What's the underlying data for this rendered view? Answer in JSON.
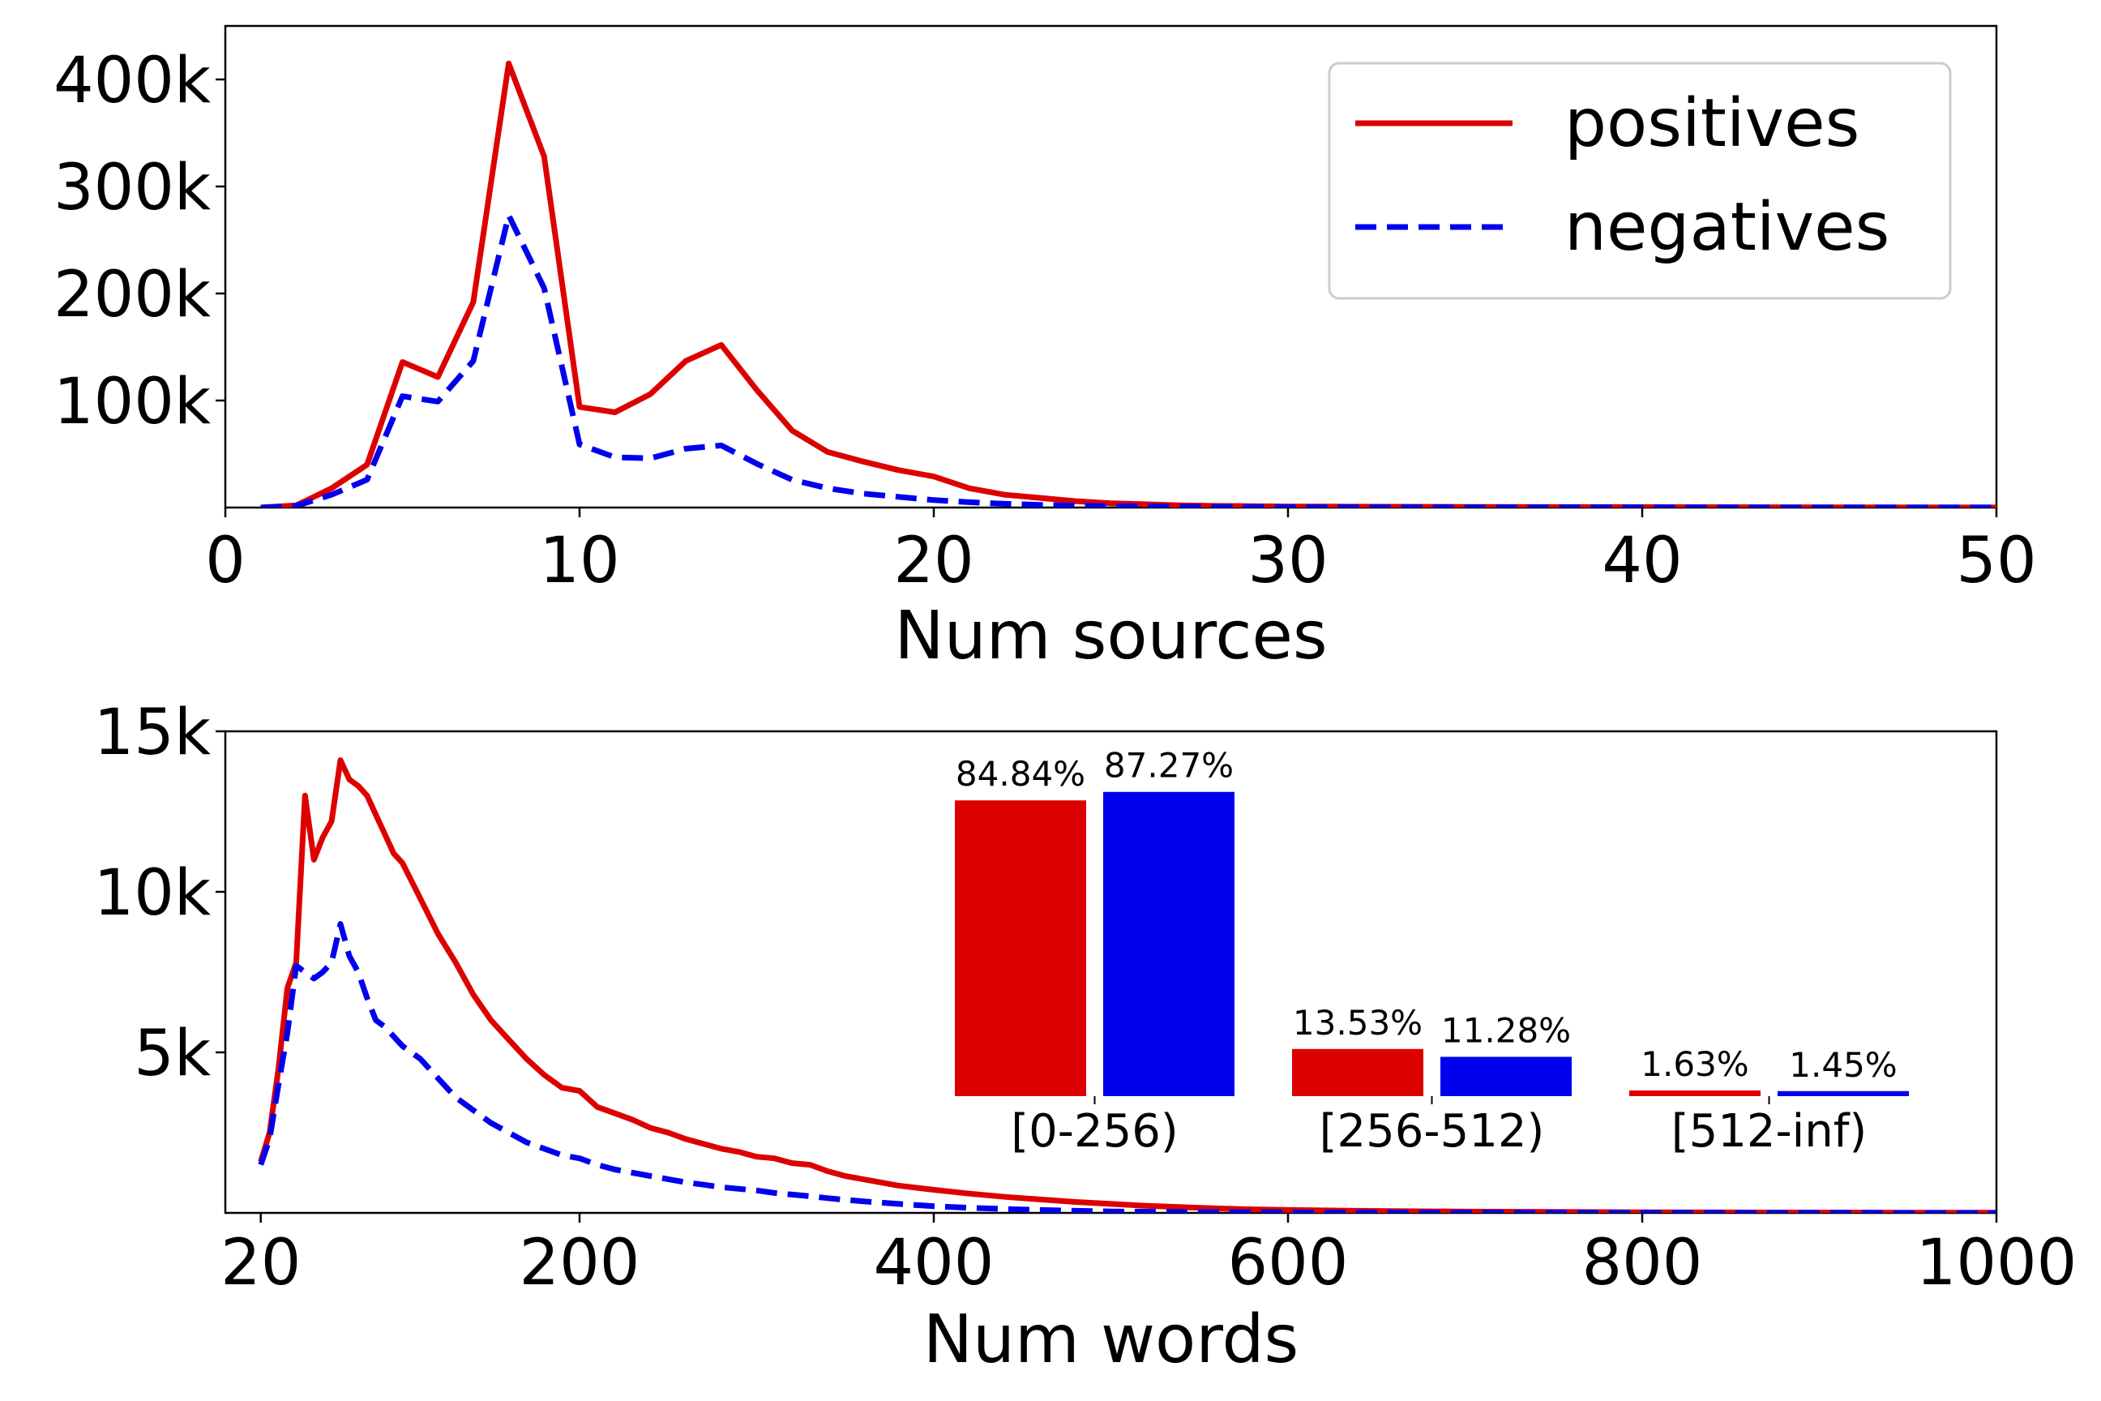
{
  "chart_data": [
    {
      "type": "line",
      "xlabel": "Num sources",
      "ylabel": "",
      "xlim": [
        0,
        50
      ],
      "ylim": [
        0,
        450000
      ],
      "xticks": [
        0,
        10,
        20,
        30,
        40,
        50
      ],
      "xtick_labels": [
        "0",
        "10",
        "20",
        "30",
        "40",
        "50"
      ],
      "yticks": [
        100000,
        200000,
        300000,
        400000
      ],
      "ytick_labels": [
        "100k",
        "200k",
        "300k",
        "400k"
      ],
      "grid": false,
      "legend_position": "top-right",
      "legend": [
        {
          "label": "positives",
          "color": "#dd0000",
          "style": "solid"
        },
        {
          "label": "negatives",
          "color": "#0000ee",
          "style": "dashed"
        }
      ],
      "series": [
        {
          "name": "positives",
          "color": "#dd0000",
          "style": "solid",
          "x": [
            1,
            2,
            3,
            4,
            5,
            6,
            7,
            8,
            9,
            10,
            11,
            12,
            13,
            14,
            15,
            16,
            17,
            18,
            19,
            20,
            21,
            22,
            23,
            24,
            25,
            26,
            27,
            28,
            30,
            35,
            40,
            45,
            50
          ],
          "y": [
            0,
            2000,
            18000,
            40000,
            136000,
            122000,
            192000,
            415000,
            328000,
            94000,
            89000,
            106000,
            137000,
            152000,
            110000,
            72000,
            52000,
            43000,
            35000,
            29000,
            18000,
            12000,
            9000,
            6000,
            4000,
            3000,
            2000,
            1500,
            1000,
            600,
            400,
            200,
            100
          ]
        },
        {
          "name": "negatives",
          "color": "#0000ee",
          "style": "dashed",
          "x": [
            1,
            2,
            3,
            4,
            5,
            6,
            7,
            8,
            9,
            10,
            11,
            12,
            13,
            14,
            15,
            16,
            17,
            18,
            19,
            20,
            21,
            22,
            23,
            24,
            25,
            26,
            28,
            30,
            35,
            40,
            45,
            50
          ],
          "y": [
            0,
            1500,
            12000,
            26000,
            104000,
            99000,
            137000,
            273000,
            205000,
            59000,
            47000,
            46000,
            55000,
            58000,
            41000,
            26000,
            18000,
            13000,
            10000,
            7000,
            5000,
            3500,
            2500,
            1800,
            1200,
            900,
            600,
            400,
            250,
            150,
            80,
            50
          ]
        }
      ]
    },
    {
      "type": "line",
      "xlabel": "Num words",
      "ylabel": "",
      "xlim": [
        0,
        1000
      ],
      "ylim": [
        0,
        15000
      ],
      "xticks": [
        20,
        200,
        400,
        600,
        800,
        1000
      ],
      "xtick_labels": [
        "20",
        "200",
        "400",
        "600",
        "800",
        "1000"
      ],
      "yticks": [
        5000,
        10000,
        15000
      ],
      "ytick_labels": [
        "5k",
        "10k",
        "15k"
      ],
      "grid": false,
      "series": [
        {
          "name": "positives",
          "color": "#dd0000",
          "style": "solid",
          "x": [
            20,
            25,
            30,
            35,
            40,
            45,
            50,
            55,
            60,
            65,
            70,
            75,
            80,
            85,
            90,
            95,
            100,
            110,
            120,
            130,
            140,
            150,
            160,
            170,
            180,
            190,
            200,
            210,
            220,
            230,
            240,
            250,
            260,
            270,
            280,
            290,
            300,
            310,
            320,
            330,
            340,
            350,
            360,
            380,
            400,
            420,
            440,
            460,
            480,
            500,
            520,
            540,
            560,
            580,
            600,
            650,
            700,
            750,
            800,
            850,
            900,
            950,
            1000
          ],
          "y": [
            1600,
            2500,
            4500,
            7000,
            7800,
            13000,
            11000,
            11700,
            12200,
            14100,
            13500,
            13300,
            13000,
            12400,
            11800,
            11200,
            10900,
            9800,
            8700,
            7800,
            6800,
            6000,
            5400,
            4800,
            4300,
            3900,
            3800,
            3300,
            3100,
            2900,
            2650,
            2500,
            2300,
            2150,
            2000,
            1900,
            1750,
            1700,
            1550,
            1500,
            1300,
            1150,
            1050,
            850,
            720,
            600,
            500,
            420,
            340,
            280,
            220,
            180,
            140,
            110,
            90,
            60,
            40,
            30,
            20,
            15,
            10,
            8,
            5
          ]
        },
        {
          "name": "negatives",
          "color": "#0000ee",
          "style": "dashed",
          "x": [
            20,
            25,
            30,
            35,
            40,
            45,
            50,
            55,
            60,
            65,
            70,
            75,
            80,
            85,
            90,
            95,
            100,
            110,
            120,
            130,
            140,
            150,
            160,
            170,
            180,
            190,
            200,
            210,
            220,
            230,
            240,
            250,
            260,
            270,
            280,
            290,
            300,
            310,
            320,
            330,
            340,
            350,
            360,
            380,
            400,
            420,
            440,
            460,
            480,
            500,
            550,
            600,
            650,
            700,
            800,
            900,
            1000
          ],
          "y": [
            1500,
            2300,
            4000,
            5600,
            7700,
            7500,
            7300,
            7500,
            7800,
            9000,
            8000,
            7500,
            6700,
            6000,
            5800,
            5500,
            5200,
            4800,
            4200,
            3600,
            3200,
            2800,
            2500,
            2200,
            2000,
            1800,
            1700,
            1500,
            1350,
            1250,
            1150,
            1050,
            950,
            880,
            800,
            750,
            700,
            620,
            570,
            520,
            460,
            410,
            360,
            280,
            210,
            160,
            120,
            90,
            65,
            45,
            25,
            15,
            10,
            6,
            3,
            2,
            1
          ]
        }
      ],
      "inset": {
        "type": "bar",
        "categories": [
          "[0-256)",
          "[256-512)",
          "[512-inf)"
        ],
        "series": [
          {
            "name": "positives",
            "color": "#dd0000",
            "values": [
              84.84,
              13.53,
              1.63
            ],
            "labels": [
              "84.84%",
              "13.53%",
              "1.63%"
            ]
          },
          {
            "name": "negatives",
            "color": "#0000ee",
            "values": [
              87.27,
              11.28,
              1.45
            ],
            "labels": [
              "87.27%",
              "11.28%",
              "1.45%"
            ]
          }
        ]
      }
    }
  ]
}
